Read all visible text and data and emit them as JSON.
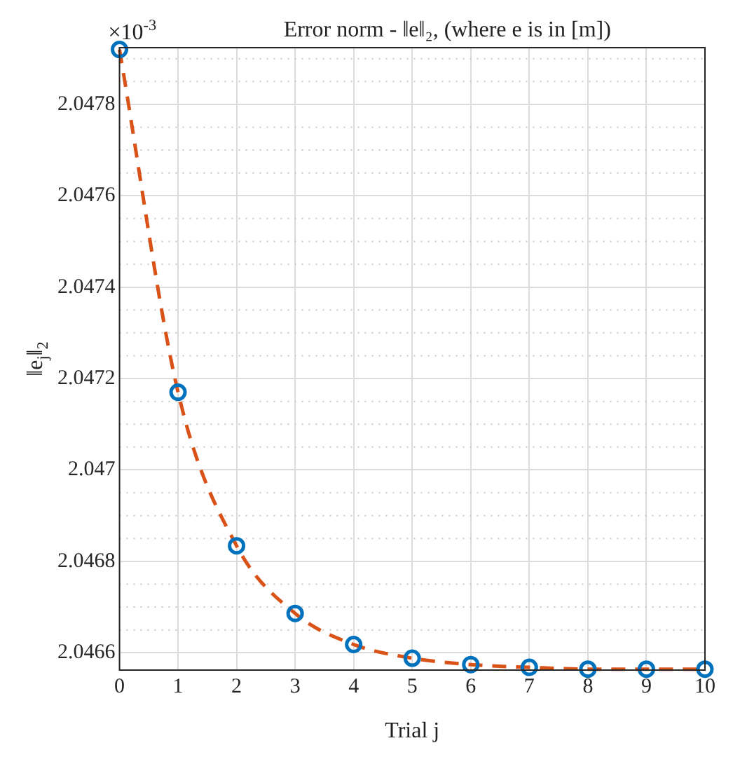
{
  "chart_data": {
    "type": "line",
    "title": "Error norm - ‖e‖₂, (where e is in [m])",
    "xlabel": "Trial j",
    "ylabel": "‖e$_{j}$‖$_{2}$",
    "annotations": [
      "×10$^{-3}$"
    ],
    "x": [
      0,
      1,
      2,
      3,
      4,
      5,
      6,
      7,
      8,
      9,
      10
    ],
    "series": [
      {
        "type": "line",
        "color": "#d95319",
        "marker": "none",
        "line_style": "dashed",
        "values": [
          2.04792,
          2.04717,
          2.046834,
          2.046686,
          2.046618,
          2.046588,
          2.046574,
          2.046568,
          2.046564,
          2.046564,
          2.046564
        ]
      },
      {
        "type": "scatter",
        "color": "#0072bd",
        "marker": "circle",
        "values": [
          2.04792,
          2.04717,
          2.046834,
          2.046686,
          2.046618,
          2.046588,
          2.046574,
          2.046568,
          2.046564,
          2.046564,
          2.046564
        ]
      }
    ],
    "xlim": [
      0,
      10
    ],
    "xticks": [
      0,
      1,
      2,
      3,
      4,
      5,
      6,
      7,
      8,
      9,
      10
    ],
    "ylim": [
      2.046562,
      2.047924
    ],
    "yticks": [
      2.0466,
      2.0468,
      2.047,
      2.0472,
      2.0474,
      2.0476,
      2.0478
    ],
    "grid": true
  }
}
